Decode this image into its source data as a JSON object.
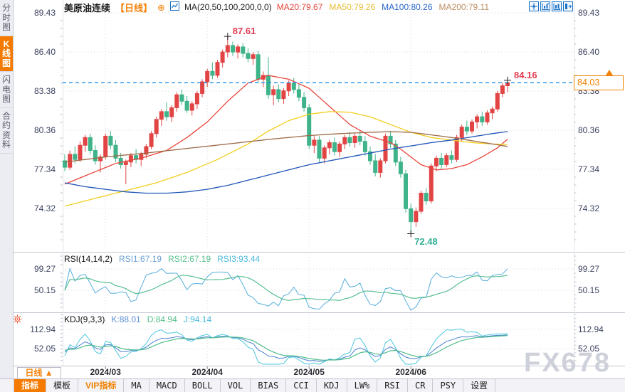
{
  "header": {
    "title": "美原油连续",
    "period_tag": "【日线】",
    "add_icon": "⊕",
    "ma_formula": "MA(20,50,100,200,0,0)",
    "ma_values": [
      {
        "label": "MA20:79.67",
        "color": "#e2433a"
      },
      {
        "label": "MA50:79.26",
        "color": "#e7bd33"
      },
      {
        "label": "MA100:80.26",
        "color": "#2765c9"
      },
      {
        "label": "MA200:79.11",
        "color": "#bd8d62"
      }
    ]
  },
  "sidebar": {
    "items": [
      {
        "label": "分时图",
        "active": false
      },
      {
        "label": "K线图",
        "active": true
      },
      {
        "label": "闪电图",
        "active": false
      },
      {
        "label": "合约资料",
        "active": false
      }
    ]
  },
  "annotations": {
    "period_high": "87.61",
    "recent_high": "84.16",
    "period_low": "72.48"
  },
  "price_marker": {
    "value": "84.03"
  },
  "rsi_panel": {
    "title": "RSI(14,14,2)",
    "values": [
      {
        "label": "RSI1:67.19",
        "color": "#6b9fd4"
      },
      {
        "label": "RSI2:67.19",
        "color": "#55c18c"
      },
      {
        "label": "RSI3:93.44",
        "color": "#4ab9dc"
      }
    ],
    "axis_labels": [
      "99.27",
      "50.15"
    ]
  },
  "kdj_panel": {
    "title": "KDJ(9,3,3)",
    "values": [
      {
        "label": "K:88.01",
        "color": "#5b8fd4"
      },
      {
        "label": "D:84.94",
        "color": "#55c18c"
      },
      {
        "label": "J:94.14",
        "color": "#4ab9dc"
      }
    ],
    "axis_labels": [
      "112.94",
      "52.05"
    ]
  },
  "xaxis": {
    "period_selector": "日线 ▲",
    "months": [
      {
        "label": "2024/03",
        "idx": 8
      },
      {
        "label": "2024/04",
        "idx": 28
      },
      {
        "label": "2024/05",
        "idx": 48
      },
      {
        "label": "2024/06",
        "idx": 68
      }
    ]
  },
  "tabs": [
    {
      "label": "指标",
      "state": "active"
    },
    {
      "label": "模板",
      "state": "normal"
    },
    {
      "label": "VIP指标",
      "state": "vip"
    },
    {
      "label": "MA",
      "state": "normal"
    },
    {
      "label": "MACD",
      "state": "normal"
    },
    {
      "label": "BOLL",
      "state": "normal"
    },
    {
      "label": "VOL",
      "state": "normal"
    },
    {
      "label": "BIAS",
      "state": "normal"
    },
    {
      "label": "CCI",
      "state": "normal"
    },
    {
      "label": "KDJ",
      "state": "normal"
    },
    {
      "label": "LW%",
      "state": "normal"
    },
    {
      "label": "RSI",
      "state": "normal"
    },
    {
      "label": "CR",
      "state": "normal"
    },
    {
      "label": "PSY",
      "state": "normal"
    },
    {
      "label": "设置",
      "state": "normal"
    }
  ],
  "watermark": "FX678",
  "chart_data": {
    "type": "candlestick",
    "title": "美原油连续 日线",
    "y_axis_labels": [
      "89.43",
      "86.40",
      "83.38",
      "80.36",
      "77.34",
      "74.32"
    ],
    "current_price": 84.03,
    "up_color": "#e24444",
    "down_color": "#3fb389",
    "markers": {
      "period_high": {
        "index": 32,
        "price": 87.61
      },
      "recent_high": {
        "index": 87,
        "price": 84.16
      },
      "period_low": {
        "index": 68,
        "price": 72.48
      }
    },
    "candles_ohlc": [
      [
        78.0,
        78.5,
        77.2,
        77.5
      ],
      [
        77.5,
        78.8,
        77.3,
        78.5
      ],
      [
        78.5,
        79.1,
        77.8,
        78.1
      ],
      [
        78.1,
        79.5,
        77.9,
        79.2
      ],
      [
        79.2,
        80.0,
        78.7,
        79.8
      ],
      [
        79.8,
        80.1,
        78.5,
        78.8
      ],
      [
        78.8,
        79.2,
        77.7,
        78.0
      ],
      [
        78.0,
        78.5,
        77.1,
        78.3
      ],
      [
        78.3,
        80.1,
        78.1,
        79.9
      ],
      [
        79.9,
        80.3,
        78.9,
        79.2
      ],
      [
        79.2,
        79.6,
        77.9,
        78.2
      ],
      [
        78.2,
        78.6,
        77.4,
        77.7
      ],
      [
        77.7,
        78.1,
        76.2,
        77.9
      ],
      [
        77.9,
        78.6,
        77.5,
        78.4
      ],
      [
        78.4,
        78.9,
        77.8,
        78.1
      ],
      [
        78.1,
        78.7,
        77.6,
        78.5
      ],
      [
        78.5,
        79.3,
        78.2,
        79.1
      ],
      [
        79.1,
        80.3,
        78.9,
        80.1
      ],
      [
        80.1,
        81.4,
        79.8,
        81.2
      ],
      [
        81.2,
        82.0,
        80.7,
        81.8
      ],
      [
        81.8,
        82.5,
        81.1,
        81.4
      ],
      [
        81.4,
        82.3,
        81.0,
        82.1
      ],
      [
        82.1,
        83.3,
        81.8,
        83.1
      ],
      [
        83.1,
        83.5,
        82.3,
        82.6
      ],
      [
        82.6,
        83.0,
        81.7,
        81.9
      ],
      [
        81.9,
        82.6,
        81.5,
        82.4
      ],
      [
        82.4,
        83.4,
        82.0,
        83.2
      ],
      [
        83.2,
        84.3,
        82.9,
        84.1
      ],
      [
        84.1,
        85.1,
        83.7,
        84.9
      ],
      [
        84.9,
        85.6,
        84.3,
        84.6
      ],
      [
        84.6,
        85.8,
        84.4,
        85.6
      ],
      [
        85.6,
        86.6,
        85.2,
        86.4
      ],
      [
        86.4,
        87.61,
        86.0,
        86.9
      ],
      [
        86.9,
        87.2,
        86.1,
        86.4
      ],
      [
        86.4,
        87.0,
        85.9,
        86.8
      ],
      [
        86.8,
        87.1,
        86.0,
        86.3
      ],
      [
        86.3,
        86.7,
        85.6,
        85.9
      ],
      [
        85.9,
        86.4,
        85.4,
        86.2
      ],
      [
        86.2,
        86.5,
        84.0,
        84.3
      ],
      [
        84.3,
        84.9,
        83.7,
        84.6
      ],
      [
        84.6,
        86.0,
        82.8,
        83.1
      ],
      [
        83.1,
        83.8,
        82.3,
        83.5
      ],
      [
        83.5,
        83.9,
        82.5,
        82.8
      ],
      [
        82.8,
        83.6,
        82.4,
        83.4
      ],
      [
        83.4,
        84.2,
        83.0,
        84.0
      ],
      [
        84.0,
        84.4,
        83.2,
        83.5
      ],
      [
        83.5,
        83.9,
        82.6,
        82.9
      ],
      [
        82.9,
        83.3,
        81.8,
        82.1
      ],
      [
        82.1,
        82.4,
        78.9,
        79.2
      ],
      [
        79.2,
        79.9,
        78.6,
        79.6
      ],
      [
        79.6,
        79.9,
        77.9,
        78.2
      ],
      [
        78.2,
        79.2,
        77.8,
        79.0
      ],
      [
        79.0,
        79.6,
        78.5,
        79.4
      ],
      [
        79.4,
        79.8,
        78.4,
        78.7
      ],
      [
        78.7,
        79.5,
        78.3,
        79.3
      ],
      [
        79.3,
        80.0,
        78.9,
        79.8
      ],
      [
        79.8,
        80.2,
        79.1,
        79.4
      ],
      [
        79.4,
        80.1,
        79.0,
        79.9
      ],
      [
        79.9,
        80.3,
        79.2,
        79.5
      ],
      [
        79.5,
        79.9,
        78.4,
        78.7
      ],
      [
        78.7,
        79.1,
        77.7,
        78.0
      ],
      [
        78.0,
        78.5,
        76.8,
        77.1
      ],
      [
        77.1,
        78.2,
        76.7,
        78.0
      ],
      [
        78.0,
        80.1,
        77.8,
        79.9
      ],
      [
        79.9,
        80.3,
        79.0,
        79.3
      ],
      [
        79.3,
        79.6,
        77.6,
        77.9
      ],
      [
        77.9,
        78.3,
        76.7,
        77.0
      ],
      [
        77.0,
        77.3,
        74.0,
        74.3
      ],
      [
        74.3,
        74.7,
        72.48,
        73.3
      ],
      [
        73.3,
        74.4,
        72.9,
        74.1
      ],
      [
        74.1,
        75.7,
        73.9,
        75.5
      ],
      [
        75.5,
        75.9,
        74.6,
        74.9
      ],
      [
        74.9,
        77.8,
        74.7,
        77.6
      ],
      [
        77.6,
        78.4,
        77.2,
        78.2
      ],
      [
        78.2,
        78.6,
        77.4,
        77.7
      ],
      [
        77.7,
        78.6,
        77.5,
        78.4
      ],
      [
        78.4,
        78.8,
        77.8,
        78.1
      ],
      [
        78.1,
        80.0,
        77.9,
        79.8
      ],
      [
        79.8,
        80.8,
        79.5,
        80.6
      ],
      [
        80.6,
        81.1,
        80.0,
        80.3
      ],
      [
        80.3,
        81.2,
        80.1,
        81.0
      ],
      [
        81.0,
        81.6,
        80.5,
        81.4
      ],
      [
        81.4,
        81.8,
        80.7,
        81.0
      ],
      [
        81.0,
        81.9,
        80.8,
        81.7
      ],
      [
        81.7,
        82.2,
        81.2,
        82.0
      ],
      [
        82.0,
        83.4,
        81.8,
        83.2
      ],
      [
        83.2,
        84.0,
        82.9,
        83.8
      ],
      [
        83.8,
        84.16,
        83.3,
        84.03
      ]
    ],
    "moving_averages": [
      {
        "name": "MA20",
        "color": "#e8453c",
        "anchors": [
          [
            0,
            76.2
          ],
          [
            5,
            77.0
          ],
          [
            10,
            77.8
          ],
          [
            15,
            78.2
          ],
          [
            20,
            78.8
          ],
          [
            24,
            79.8
          ],
          [
            28,
            81.0
          ],
          [
            32,
            82.6
          ],
          [
            36,
            84.0
          ],
          [
            40,
            84.6
          ],
          [
            44,
            84.3
          ],
          [
            48,
            83.6
          ],
          [
            52,
            82.2
          ],
          [
            56,
            80.8
          ],
          [
            60,
            79.9
          ],
          [
            64,
            79.4
          ],
          [
            66,
            78.9
          ],
          [
            68,
            78.3
          ],
          [
            70,
            77.7
          ],
          [
            73,
            77.3
          ],
          [
            76,
            77.4
          ],
          [
            79,
            77.7
          ],
          [
            82,
            78.3
          ],
          [
            85,
            79.0
          ],
          [
            87,
            79.67
          ]
        ]
      },
      {
        "name": "MA50",
        "color": "#f2cf1d",
        "anchors": [
          [
            0,
            74.5
          ],
          [
            6,
            75.1
          ],
          [
            12,
            75.7
          ],
          [
            18,
            76.3
          ],
          [
            24,
            77.1
          ],
          [
            30,
            78.1
          ],
          [
            36,
            79.3
          ],
          [
            40,
            80.3
          ],
          [
            44,
            81.1
          ],
          [
            48,
            81.6
          ],
          [
            52,
            81.8
          ],
          [
            56,
            81.75
          ],
          [
            60,
            81.4
          ],
          [
            64,
            80.8
          ],
          [
            68,
            80.2
          ],
          [
            72,
            79.8
          ],
          [
            76,
            79.6
          ],
          [
            80,
            79.4
          ],
          [
            84,
            79.3
          ],
          [
            87,
            79.26
          ]
        ]
      },
      {
        "name": "MA100",
        "color": "#2057b8",
        "anchors": [
          [
            0,
            76.3
          ],
          [
            4,
            76.0
          ],
          [
            8,
            75.8
          ],
          [
            12,
            75.6
          ],
          [
            16,
            75.5
          ],
          [
            20,
            75.5
          ],
          [
            24,
            75.6
          ],
          [
            28,
            75.8
          ],
          [
            32,
            76.1
          ],
          [
            36,
            76.5
          ],
          [
            40,
            76.9
          ],
          [
            44,
            77.3
          ],
          [
            48,
            77.7
          ],
          [
            52,
            78.0
          ],
          [
            56,
            78.3
          ],
          [
            60,
            78.6
          ],
          [
            64,
            78.9
          ],
          [
            68,
            79.15
          ],
          [
            72,
            79.4
          ],
          [
            76,
            79.6
          ],
          [
            80,
            79.85
          ],
          [
            84,
            80.1
          ],
          [
            87,
            80.26
          ]
        ]
      },
      {
        "name": "MA200",
        "color": "#9c6a48",
        "anchors": [
          [
            0,
            77.9
          ],
          [
            8,
            78.3
          ],
          [
            16,
            78.6
          ],
          [
            24,
            78.95
          ],
          [
            32,
            79.3
          ],
          [
            40,
            79.65
          ],
          [
            48,
            79.95
          ],
          [
            54,
            80.1
          ],
          [
            60,
            80.2
          ],
          [
            64,
            80.25
          ],
          [
            68,
            80.2
          ],
          [
            72,
            80.0
          ],
          [
            76,
            79.8
          ],
          [
            80,
            79.55
          ],
          [
            84,
            79.3
          ],
          [
            87,
            79.11
          ]
        ]
      }
    ],
    "rsi": {
      "period_fast": 5,
      "smooth": 9,
      "colors": {
        "fast": "#56aedd",
        "smooth": "#57bf92"
      }
    },
    "kdj": {
      "n": 9,
      "colors": {
        "k": "#4a7fd0",
        "d": "#4fbd8c",
        "j": "#49c6de"
      }
    }
  }
}
